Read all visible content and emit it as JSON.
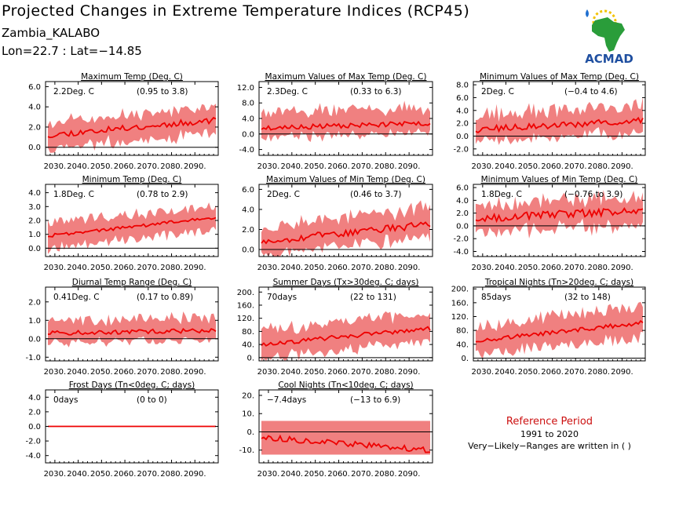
{
  "header": {
    "title": "Projected Changes in Extreme Temperature Indices (RCP45)",
    "location": "Zambia_KALABO",
    "coords": "Lon=22.7 : Lat=−14.85"
  },
  "logo": {
    "icon": "acmad-africa-logo-icon",
    "text": "ACMAD",
    "colors": [
      "#2a9d3a",
      "#f2c200",
      "#1f4fa0",
      "#e8a000"
    ]
  },
  "reference": {
    "title": "Reference Period",
    "years": "1991 to 2020",
    "note": "Very−Likely−Ranges are written in ( )"
  },
  "colors": {
    "band": "#f08080",
    "line": "#ee0000",
    "axis": "#000000"
  },
  "x_ticks": [
    "2030.",
    "2040.",
    "2050.",
    "2060.",
    "2070.",
    "2080.",
    "2090."
  ],
  "chart_data": [
    {
      "type": "area",
      "title": "Maximum Temp (Deg. C)",
      "value_label": "2.2Deg. C",
      "range_label": "(0.95 to 3.8)",
      "xlim": [
        2026,
        2100
      ],
      "ylim": [
        -0.8,
        6.5
      ],
      "yticks": [
        0.0,
        2.0,
        4.0,
        6.0
      ],
      "ytick_labels": [
        "0.0",
        "2.0",
        "4.0",
        "6.0"
      ],
      "median_start": 1.2,
      "median_end": 2.7,
      "noise": 0.3,
      "band_low": 1.3,
      "band_high": 1.3,
      "seed": 11
    },
    {
      "type": "area",
      "title": "Maximum Values of Max Temp (Deg. C)",
      "value_label": "2.3Deg. C",
      "range_label": "(0.33 to 6.3)",
      "xlim": [
        2026,
        2100
      ],
      "ylim": [
        -5.5,
        13.5
      ],
      "yticks": [
        -4.0,
        0.0,
        4.0,
        8.0,
        12.0
      ],
      "ytick_labels": [
        "-4.0",
        "0.0",
        "4.0",
        "8.0",
        "12.0"
      ],
      "median_start": 1.5,
      "median_end": 2.8,
      "noise": 0.6,
      "band_low": 2.5,
      "band_high": 4.0,
      "seed": 23
    },
    {
      "type": "area",
      "title": "Minimum Values of Max Temp (Deg. C)",
      "value_label": "2Deg. C",
      "range_label": "(−0.4 to 4.6)",
      "xlim": [
        2026,
        2100
      ],
      "ylim": [
        -3.0,
        8.5
      ],
      "yticks": [
        -2.0,
        0.0,
        2.0,
        4.0,
        6.0,
        8.0
      ],
      "ytick_labels": [
        "-2.0",
        "0.0",
        "2.0",
        "4.0",
        "6.0",
        "8.0"
      ],
      "median_start": 1.0,
      "median_end": 2.4,
      "noise": 0.5,
      "band_low": 1.8,
      "band_high": 2.4,
      "seed": 37
    },
    {
      "type": "area",
      "title": "Minimum Temp (Deg. C)",
      "value_label": "1.8Deg. C",
      "range_label": "(0.78 to 2.9)",
      "xlim": [
        2026,
        2100
      ],
      "ylim": [
        -0.6,
        4.6
      ],
      "yticks": [
        0.0,
        1.0,
        2.0,
        3.0,
        4.0
      ],
      "ytick_labels": [
        "0.0",
        "1.0",
        "2.0",
        "3.0",
        "4.0"
      ],
      "median_start": 0.9,
      "median_end": 2.2,
      "noise": 0.12,
      "band_low": 0.9,
      "band_high": 0.9,
      "seed": 41
    },
    {
      "type": "area",
      "title": "Maximum Values of Min Temp (Deg. C)",
      "value_label": "2Deg. C",
      "range_label": "(0.46 to 3.7)",
      "xlim": [
        2026,
        2100
      ],
      "ylim": [
        -0.7,
        6.5
      ],
      "yticks": [
        0.0,
        2.0,
        4.0,
        6.0
      ],
      "ytick_labels": [
        "0.0",
        "2.0",
        "4.0",
        "6.0"
      ],
      "median_start": 0.8,
      "median_end": 2.5,
      "noise": 0.35,
      "band_low": 1.3,
      "band_high": 1.6,
      "seed": 53
    },
    {
      "type": "area",
      "title": "Minimum Values of Min Temp (Deg. C)",
      "value_label": "1.8Deg. C",
      "range_label": "(−0.76 to 3.9)",
      "xlim": [
        2026,
        2100
      ],
      "ylim": [
        -4.8,
        6.5
      ],
      "yticks": [
        -4.0,
        -2.0,
        0.0,
        2.0,
        4.0,
        6.0
      ],
      "ytick_labels": [
        "-4.0",
        "-2.0",
        "0.0",
        "2.0",
        "4.0",
        "6.0"
      ],
      "median_start": 1.2,
      "median_end": 2.4,
      "noise": 0.6,
      "band_low": 2.2,
      "band_high": 2.2,
      "seed": 67
    },
    {
      "type": "area",
      "title": "Diurnal Temp Range (Deg. C)",
      "value_label": "0.41Deg. C",
      "range_label": "(0.17 to 0.89)",
      "xlim": [
        2026,
        2100
      ],
      "ylim": [
        -1.2,
        2.8
      ],
      "yticks": [
        -1.0,
        0.0,
        1.0,
        2.0
      ],
      "ytick_labels": [
        "-1.0",
        "0.0",
        "1.0",
        "2.0"
      ],
      "median_start": 0.3,
      "median_end": 0.45,
      "noise": 0.12,
      "band_low": 0.5,
      "band_high": 0.7,
      "seed": 71
    },
    {
      "type": "area",
      "title": "Summer Days (Tx>30deg. C; days)",
      "value_label": "70days",
      "range_label": "(22 to 131)",
      "xlim": [
        2026,
        2100
      ],
      "ylim": [
        -10,
        215
      ],
      "yticks": [
        0,
        40,
        80,
        120,
        160,
        200
      ],
      "ytick_labels": [
        "0.",
        "40.",
        "80.",
        "120.",
        "160.",
        "200."
      ],
      "median_start": 40,
      "median_end": 90,
      "noise": 7,
      "band_low": 40,
      "band_high": 45,
      "seed": 83
    },
    {
      "type": "area",
      "title": "Tropical Nights (Tn>20deg. C; days)",
      "value_label": "85days",
      "range_label": "(32 to 148)",
      "xlim": [
        2026,
        2100
      ],
      "ylim": [
        -8,
        205
      ],
      "yticks": [
        0,
        40,
        80,
        120,
        160,
        200
      ],
      "ytick_labels": [
        "0.",
        "40.",
        "80.",
        "120.",
        "160.",
        "200."
      ],
      "median_start": 50,
      "median_end": 102,
      "noise": 6,
      "band_low": 40,
      "band_high": 45,
      "seed": 97
    },
    {
      "type": "area",
      "title": "Frost Days (Tn<0deg. C; days)",
      "value_label": "0days",
      "range_label": "(0 to 0)",
      "xlim": [
        2026,
        2100
      ],
      "ylim": [
        -5,
        5
      ],
      "yticks": [
        -4.0,
        -2.0,
        0.0,
        2.0,
        4.0
      ],
      "ytick_labels": [
        "-4.0",
        "-2.0",
        "0.0",
        "2.0",
        "4.0"
      ],
      "median_start": 0,
      "median_end": 0,
      "noise": 0,
      "band_low": 0,
      "band_high": 0,
      "seed": 5
    },
    {
      "type": "area",
      "title": "Cool Nights (Tn<10deg. C; days)",
      "value_label": "−7.4days",
      "range_label": "(−13 to 6.9)",
      "xlim": [
        2026,
        2100
      ],
      "ylim": [
        -17,
        23
      ],
      "yticks": [
        -10,
        0,
        10,
        20
      ],
      "ytick_labels": [
        "-10.",
        "0.",
        "10.",
        "20."
      ],
      "median_start": -3,
      "median_end": -10,
      "noise": 1.5,
      "band_low": 0,
      "band_high": 0,
      "band_fixed": [
        -12.5,
        6.0
      ],
      "seed": 113
    }
  ]
}
